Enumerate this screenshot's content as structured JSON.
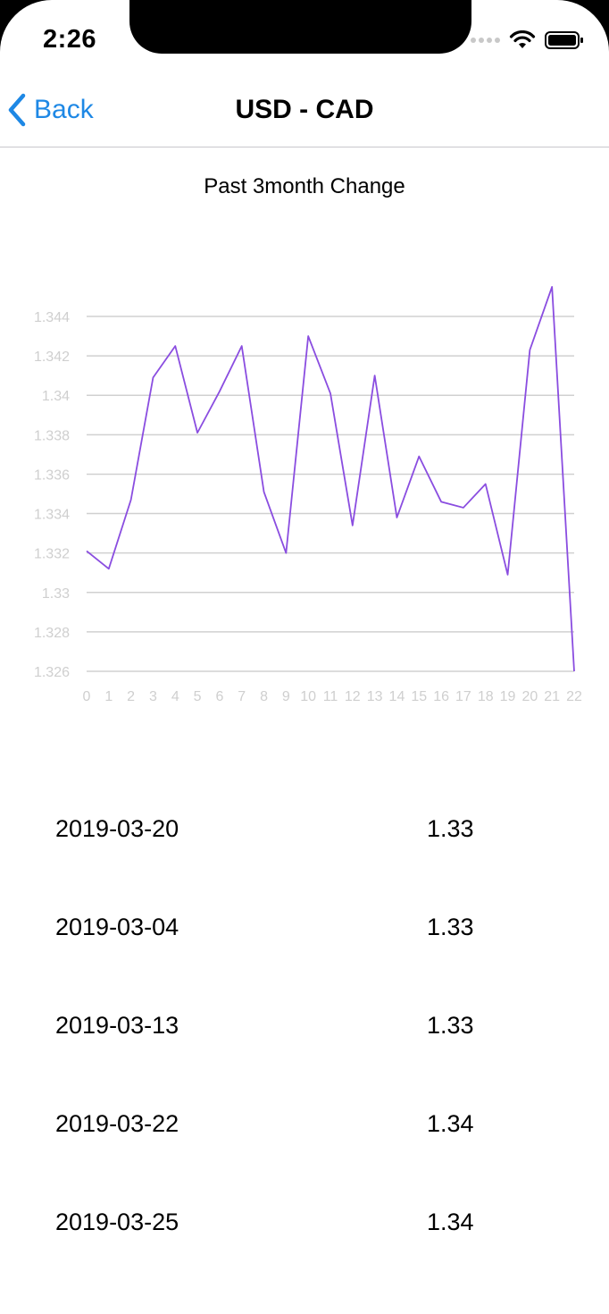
{
  "status_bar": {
    "time": "2:26"
  },
  "navbar": {
    "back_label": "Back",
    "title": "USD - CAD"
  },
  "chart_title": "Past 3month Change",
  "chart_data": {
    "type": "line",
    "x": [
      0,
      1,
      2,
      3,
      4,
      5,
      6,
      7,
      8,
      9,
      10,
      11,
      12,
      13,
      14,
      15,
      16,
      17,
      18,
      19,
      20,
      21,
      22
    ],
    "series": [
      {
        "values": [
          1.3321,
          1.3312,
          1.3347,
          1.3409,
          1.3425,
          1.3381,
          1.3402,
          1.3425,
          1.3351,
          1.332,
          1.343,
          1.3401,
          1.3334,
          1.341,
          1.3338,
          1.3369,
          1.3346,
          1.3343,
          1.3355,
          1.3309,
          1.3423,
          1.3455,
          1.326
        ],
        "color": "#8a4de0"
      }
    ],
    "ylim": [
      1.326,
      1.344
    ],
    "yticks": [
      "1.326",
      "1.328",
      "1.33",
      "1.332",
      "1.334",
      "1.336",
      "1.338",
      "1.34",
      "1.342",
      "1.344"
    ],
    "xticks": [
      "0",
      "1",
      "2",
      "3",
      "4",
      "5",
      "6",
      "7",
      "8",
      "9",
      "10",
      "11",
      "12",
      "13",
      "14",
      "15",
      "16",
      "17",
      "18",
      "19",
      "20",
      "21",
      "22"
    ],
    "grid": true
  },
  "rates": [
    {
      "date": "2019-03-20",
      "value": "1.33"
    },
    {
      "date": "2019-03-04",
      "value": "1.33"
    },
    {
      "date": "2019-03-13",
      "value": "1.33"
    },
    {
      "date": "2019-03-22",
      "value": "1.34"
    },
    {
      "date": "2019-03-25",
      "value": "1.34"
    }
  ]
}
